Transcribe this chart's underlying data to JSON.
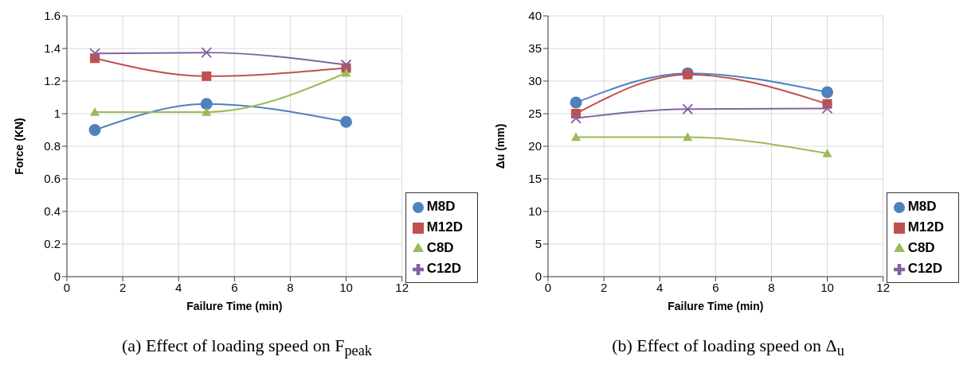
{
  "chart_data": [
    {
      "type": "line",
      "title": "(a)  Effect of loading speed on F$_{peak}$",
      "xlabel": "Failure Time (min)",
      "ylabel": "Force (KN)",
      "x": [
        1,
        5,
        10
      ],
      "series": [
        {
          "name": "M8D",
          "color": "#4f81bd",
          "marker": "circle",
          "values": [
            0.9,
            1.06,
            0.95
          ]
        },
        {
          "name": "M12D",
          "color": "#c0504d",
          "marker": "square",
          "values": [
            1.34,
            1.23,
            1.28
          ]
        },
        {
          "name": "C8D",
          "color": "#9bbb59",
          "marker": "triangle",
          "values": [
            1.01,
            1.01,
            1.25
          ]
        },
        {
          "name": "C12D",
          "color": "#8064a2",
          "marker": "cross",
          "values": [
            1.37,
            1.375,
            1.3
          ]
        }
      ],
      "xlim": [
        0,
        12
      ],
      "xticks": [
        0,
        2,
        4,
        6,
        8,
        10,
        12
      ],
      "ylim": [
        0,
        1.6
      ],
      "yticks": [
        0,
        0.2,
        0.4,
        0.6,
        0.8,
        1,
        1.2,
        1.4,
        1.6
      ],
      "grid": true,
      "legend": "bottom right"
    },
    {
      "type": "line",
      "title": "(b) Effect of loading speed on Δ$_{u}$",
      "xlabel": "Failure Time (min)",
      "ylabel": "Δu  (mm)",
      "x": [
        1,
        5,
        10
      ],
      "series": [
        {
          "name": "M8D",
          "color": "#4f81bd",
          "marker": "circle",
          "values": [
            26.7,
            31.2,
            28.3
          ]
        },
        {
          "name": "M12D",
          "color": "#c0504d",
          "marker": "square",
          "values": [
            25.0,
            31.0,
            26.5
          ]
        },
        {
          "name": "C8D",
          "color": "#9bbb59",
          "marker": "triangle",
          "values": [
            21.4,
            21.4,
            18.9
          ]
        },
        {
          "name": "C12D",
          "color": "#8064a2",
          "marker": "cross",
          "values": [
            24.3,
            25.7,
            25.8
          ]
        }
      ],
      "xlim": [
        0,
        12
      ],
      "xticks": [
        0,
        2,
        4,
        6,
        8,
        10,
        12
      ],
      "ylim": [
        0,
        40
      ],
      "yticks": [
        0,
        5,
        10,
        15,
        20,
        25,
        30,
        35,
        40
      ],
      "grid": true,
      "legend": "bottom right"
    }
  ]
}
